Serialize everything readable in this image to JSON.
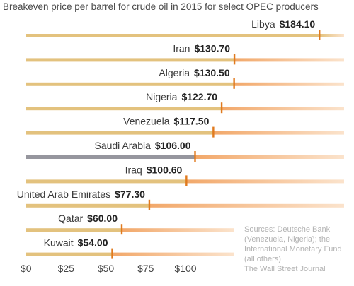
{
  "title": "Breakeven price per barrel for crude oil in 2015 for select OPEC producers",
  "chart_data": {
    "type": "bar",
    "title": "Breakeven price per barrel for crude oil in 2015 for select OPEC producers",
    "unit": "$",
    "categories": [
      "Libya",
      "Iran",
      "Algeria",
      "Nigeria",
      "Venezuela",
      "Saudi Arabia",
      "Iraq",
      "United Arab Emirates",
      "Qatar",
      "Kuwait"
    ],
    "values": [
      184.1,
      130.7,
      130.5,
      122.7,
      117.5,
      106.0,
      100.6,
      77.3,
      60.0,
      54.0
    ],
    "value_labels": [
      "$184.10",
      "$130.70",
      "$130.50",
      "$122.70",
      "$117.50",
      "$106.00",
      "$100.60",
      "$77.30",
      "$60.00",
      "$54.00"
    ],
    "highlight": "Saudi Arabia",
    "x_ticks": [
      "$0",
      "$25",
      "$50",
      "$75",
      "$100"
    ],
    "x_tick_values": [
      0,
      25,
      50,
      75,
      100
    ],
    "xlim": [
      0,
      195
    ],
    "colors": {
      "bar": "#e3c27e",
      "bar_after": "#f2a86a",
      "highlight": "#96969e",
      "marker": "#e07a1e",
      "fade": "#fbe3cc"
    }
  },
  "source": [
    "Sources: Deutsche Bank",
    "(Venezuela, Nigeria); the",
    "International Monetary Fund",
    "(all others)",
    "The Wall Street Journal"
  ]
}
